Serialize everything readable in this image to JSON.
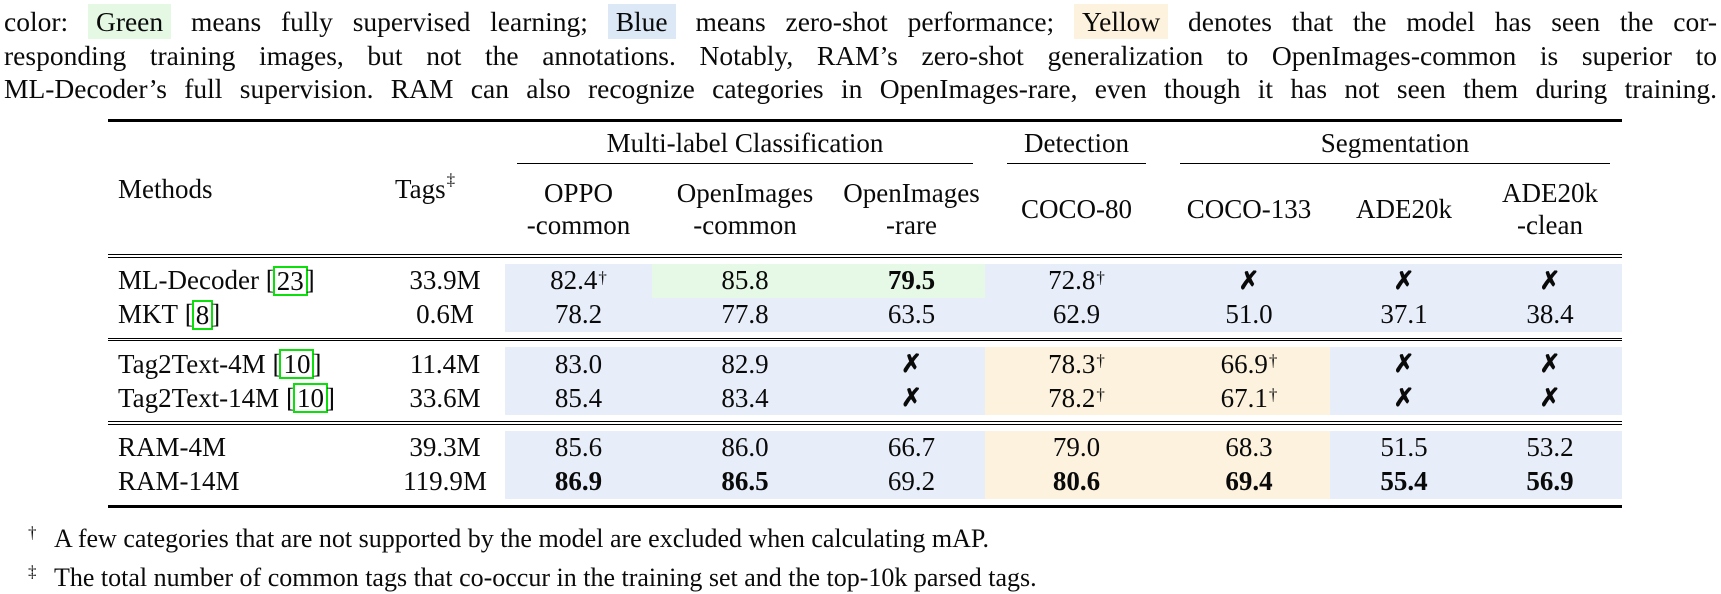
{
  "colors": {
    "band_blue": "#e7eefa",
    "band_green": "#e6f9e6",
    "band_yellow": "#fcf2de",
    "caption_green": "#e4f8e4",
    "caption_blue": "#dde8f7",
    "caption_yellow": "#fcf2de",
    "citation_box_green": "#0cdf0c"
  },
  "caption": {
    "lines": [
      {
        "segments": [
          {
            "text": "color: "
          },
          {
            "text": "Green",
            "highlight": "green"
          },
          {
            "text": " means fully supervised learning; "
          },
          {
            "text": "Blue",
            "highlight": "blue"
          },
          {
            "text": " means zero-shot performance; "
          },
          {
            "text": "Yellow",
            "highlight": "yellow"
          },
          {
            "text": " denotes that the model has seen the cor-"
          }
        ]
      },
      {
        "segments": [
          {
            "text": "responding training images, but not the annotations. Notably, RAM’s zero-shot generalization to OpenImages-common is superior to"
          }
        ]
      },
      {
        "segments": [
          {
            "text": "ML-Decoder’s full supervision. RAM can also recognize categories in OpenImages-rare, even though it has not seen them during training."
          }
        ]
      }
    ]
  },
  "table": {
    "cross_glyph": "✗",
    "column_groups": [
      {
        "label": "Multi-label Classification",
        "start": 3,
        "end": 6,
        "narrow": false
      },
      {
        "label": "Detection",
        "start": 6,
        "end": 7,
        "narrow": true
      },
      {
        "label": "Segmentation",
        "start": 7,
        "end": 10,
        "narrow": false
      }
    ],
    "columns": [
      {
        "label": "Methods"
      },
      {
        "label": "Tags",
        "sup": "‡"
      },
      {
        "lines": [
          "OPPO",
          "-common"
        ]
      },
      {
        "lines": [
          "OpenImages",
          "-common"
        ]
      },
      {
        "lines": [
          "OpenImages",
          "-rare"
        ]
      },
      {
        "label": "COCO-80"
      },
      {
        "label": "COCO-133"
      },
      {
        "label": "ADE20k"
      },
      {
        "lines": [
          "ADE20k",
          "-clean"
        ]
      }
    ],
    "groups": [
      {
        "rows": [
          {
            "method": "ML-Decoder",
            "cite": "23",
            "tags": "33.9M",
            "cells": [
              {
                "v": "82.4",
                "sup": "†",
                "bg": "blue"
              },
              {
                "v": "85.8",
                "bg": "green"
              },
              {
                "v": "79.5",
                "bold": true,
                "bg": "green"
              },
              {
                "v": "72.8",
                "sup": "†",
                "bg": "blue"
              },
              {
                "cross": true,
                "bg": "blue"
              },
              {
                "cross": true,
                "bg": "blue"
              },
              {
                "cross": true,
                "bg": "blue"
              }
            ]
          },
          {
            "method": "MKT",
            "cite": "8",
            "tags": "0.6M",
            "cells": [
              {
                "v": "78.2",
                "bg": "blue"
              },
              {
                "v": "77.8",
                "bg": "blue"
              },
              {
                "v": "63.5",
                "bg": "blue"
              },
              {
                "v": "62.9",
                "bg": "blue"
              },
              {
                "v": "51.0",
                "bg": "blue"
              },
              {
                "v": "37.1",
                "bg": "blue"
              },
              {
                "v": "38.4",
                "bg": "blue"
              }
            ]
          }
        ]
      },
      {
        "rows": [
          {
            "method": "Tag2Text-4M",
            "cite": "10",
            "tags": "11.4M",
            "cells": [
              {
                "v": "83.0",
                "bg": "blue"
              },
              {
                "v": "82.9",
                "bg": "blue"
              },
              {
                "cross": true,
                "bg": "blue"
              },
              {
                "v": "78.3",
                "sup": "†",
                "bg": "yellow"
              },
              {
                "v": "66.9",
                "sup": "†",
                "bg": "yellow"
              },
              {
                "cross": true,
                "bg": "blue"
              },
              {
                "cross": true,
                "bg": "blue"
              }
            ]
          },
          {
            "method": "Tag2Text-14M",
            "cite": "10",
            "tags": "33.6M",
            "cells": [
              {
                "v": "85.4",
                "bg": "blue"
              },
              {
                "v": "83.4",
                "bg": "blue"
              },
              {
                "cross": true,
                "bg": "blue"
              },
              {
                "v": "78.2",
                "sup": "†",
                "bg": "yellow"
              },
              {
                "v": "67.1",
                "sup": "†",
                "bg": "yellow"
              },
              {
                "cross": true,
                "bg": "blue"
              },
              {
                "cross": true,
                "bg": "blue"
              }
            ]
          }
        ]
      },
      {
        "rows": [
          {
            "method": "RAM-4M",
            "tags": "39.3M",
            "cells": [
              {
                "v": "85.6",
                "bg": "blue"
              },
              {
                "v": "86.0",
                "bg": "blue"
              },
              {
                "v": "66.7",
                "bg": "blue"
              },
              {
                "v": "79.0",
                "bg": "yellow"
              },
              {
                "v": "68.3",
                "bg": "yellow"
              },
              {
                "v": "51.5",
                "bg": "blue"
              },
              {
                "v": "53.2",
                "bg": "blue"
              }
            ]
          },
          {
            "method": "RAM-14M",
            "tags": "119.9M",
            "cells": [
              {
                "v": "86.9",
                "bold": true,
                "bg": "blue"
              },
              {
                "v": "86.5",
                "bold": true,
                "bg": "blue"
              },
              {
                "v": "69.2",
                "bg": "blue"
              },
              {
                "v": "80.6",
                "bold": true,
                "bg": "yellow"
              },
              {
                "v": "69.4",
                "bold": true,
                "bg": "yellow"
              },
              {
                "v": "55.4",
                "bold": true,
                "bg": "blue"
              },
              {
                "v": "56.9",
                "bold": true,
                "bg": "blue"
              }
            ]
          }
        ]
      }
    ]
  },
  "footnotes": [
    {
      "symbol": "†",
      "text": "A few categories that are not supported by the model are excluded when calculating mAP."
    },
    {
      "symbol": "‡",
      "text": "The total number of common tags that co-occur in the training set and the top-10k parsed tags."
    }
  ]
}
